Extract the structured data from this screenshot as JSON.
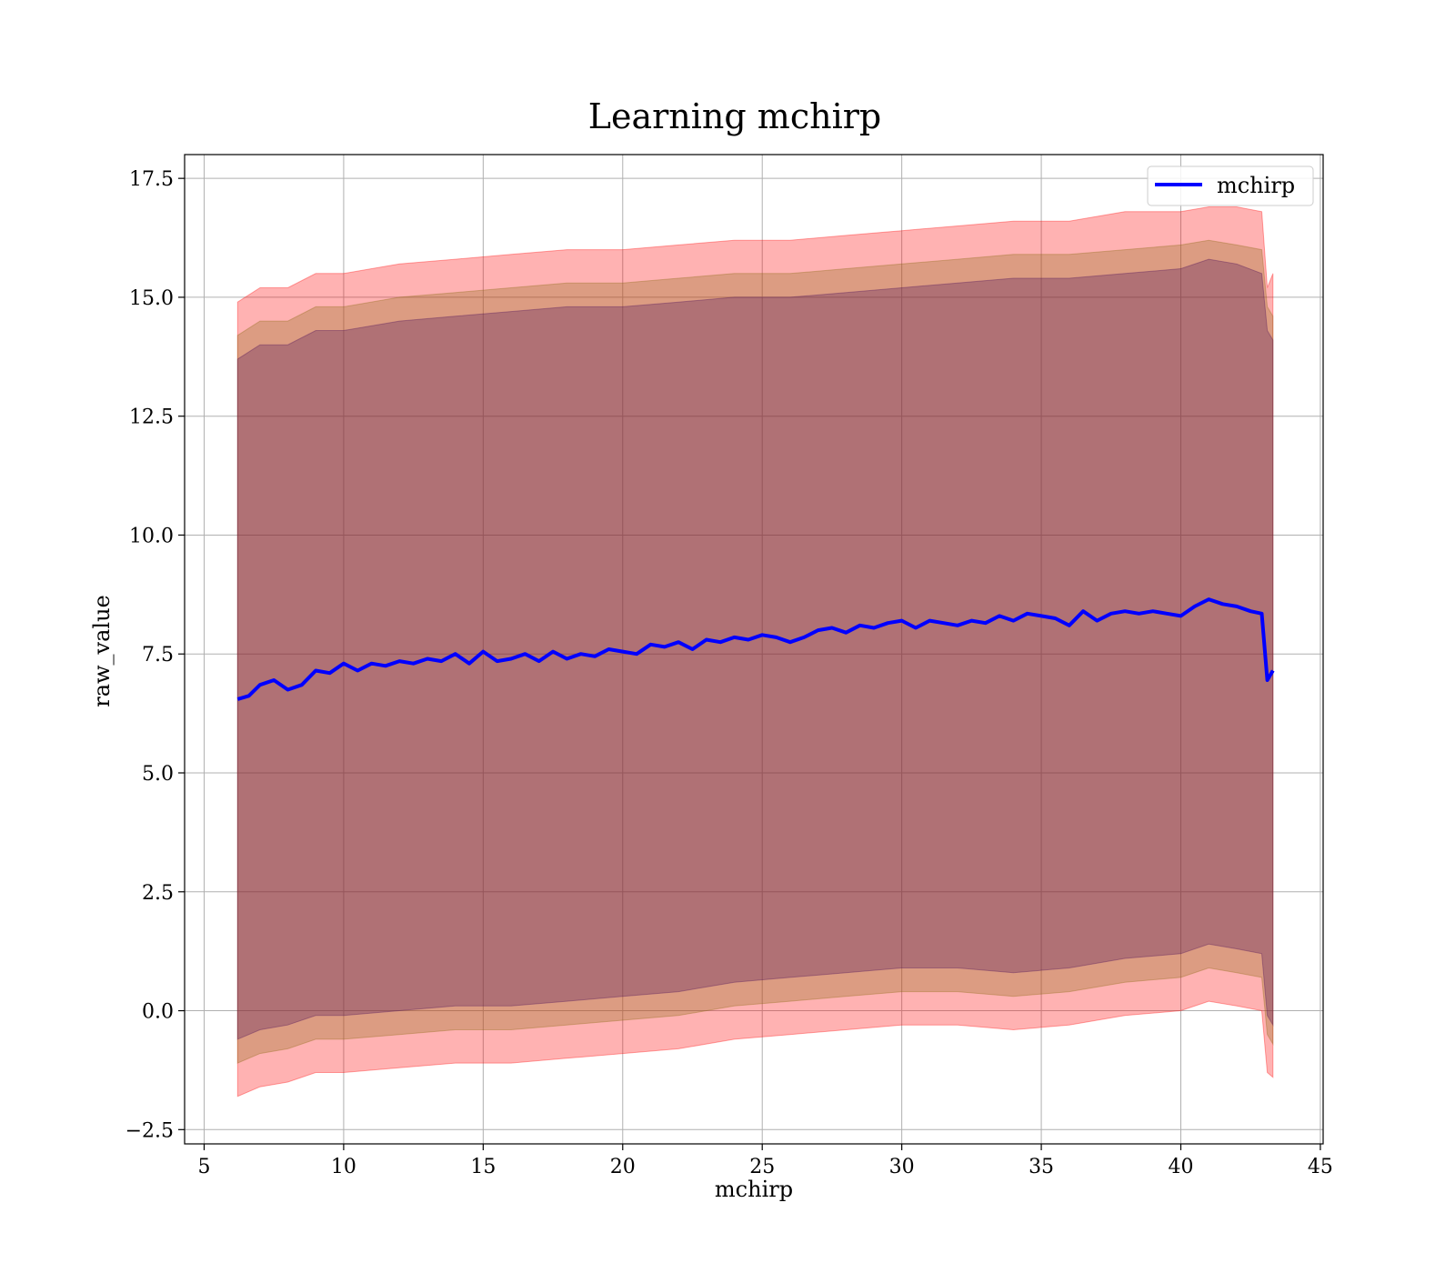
{
  "chart_data": {
    "type": "line",
    "title": "Learning mchirp",
    "xlabel": "mchirp",
    "ylabel": "raw_value",
    "xlim": [
      4.3,
      45.1
    ],
    "ylim": [
      -2.8,
      18.0
    ],
    "xticks": [
      5,
      10,
      15,
      20,
      25,
      30,
      35,
      40,
      45
    ],
    "xtick_labels": [
      "5",
      "10",
      "15",
      "20",
      "25",
      "30",
      "35",
      "40",
      "45"
    ],
    "yticks": [
      -2.5,
      0.0,
      2.5,
      5.0,
      7.5,
      10.0,
      12.5,
      15.0,
      17.5
    ],
    "ytick_labels": [
      "−2.5",
      "0.0",
      "2.5",
      "5.0",
      "7.5",
      "10.0",
      "12.5",
      "15.0",
      "17.5"
    ],
    "grid": true,
    "legend": {
      "location": "upper right",
      "entries": [
        "mchirp"
      ]
    },
    "series": [
      {
        "name": "mchirp",
        "color": "#0000ff",
        "x": [
          6.2,
          6.6,
          7.0,
          7.5,
          8.0,
          8.5,
          9.0,
          9.5,
          10.0,
          10.5,
          11.0,
          11.5,
          12.0,
          12.5,
          13.0,
          13.5,
          14.0,
          14.5,
          15.0,
          15.5,
          16.0,
          16.5,
          17.0,
          17.5,
          18.0,
          18.5,
          19.0,
          19.5,
          20.0,
          20.5,
          21.0,
          21.5,
          22.0,
          22.5,
          23.0,
          23.5,
          24.0,
          24.5,
          25.0,
          25.5,
          26.0,
          26.5,
          27.0,
          27.5,
          28.0,
          28.5,
          29.0,
          29.5,
          30.0,
          30.5,
          31.0,
          31.5,
          32.0,
          32.5,
          33.0,
          33.5,
          34.0,
          34.5,
          35.0,
          35.5,
          36.0,
          36.5,
          37.0,
          37.5,
          38.0,
          38.5,
          39.0,
          39.5,
          40.0,
          40.5,
          41.0,
          41.5,
          42.0,
          42.5,
          42.9,
          43.1,
          43.3
        ],
        "values": [
          6.55,
          6.62,
          6.85,
          6.95,
          6.75,
          6.85,
          7.15,
          7.1,
          7.3,
          7.15,
          7.3,
          7.25,
          7.35,
          7.3,
          7.4,
          7.35,
          7.5,
          7.3,
          7.55,
          7.35,
          7.4,
          7.5,
          7.35,
          7.55,
          7.4,
          7.5,
          7.45,
          7.6,
          7.55,
          7.5,
          7.7,
          7.65,
          7.75,
          7.6,
          7.8,
          7.75,
          7.85,
          7.8,
          7.9,
          7.85,
          7.75,
          7.85,
          8.0,
          8.05,
          7.95,
          8.1,
          8.05,
          8.15,
          8.2,
          8.05,
          8.2,
          8.15,
          8.1,
          8.2,
          8.15,
          8.3,
          8.2,
          8.35,
          8.3,
          8.25,
          8.1,
          8.4,
          8.2,
          8.35,
          8.4,
          8.35,
          8.4,
          8.35,
          8.3,
          8.5,
          8.65,
          8.55,
          8.5,
          8.4,
          8.35,
          6.95,
          7.15
        ]
      }
    ],
    "bands": [
      {
        "color": "#ff0000",
        "alpha": 0.3,
        "x": [
          6.2,
          7.0,
          8.0,
          9.0,
          10.0,
          12.0,
          14.0,
          16.0,
          18.0,
          20.0,
          22.0,
          24.0,
          26.0,
          28.0,
          30.0,
          32.0,
          34.0,
          36.0,
          38.0,
          40.0,
          41.0,
          42.0,
          42.9,
          43.1,
          43.3
        ],
        "upper": [
          14.9,
          15.2,
          15.2,
          15.5,
          15.5,
          15.7,
          15.8,
          15.9,
          16.0,
          16.0,
          16.1,
          16.2,
          16.2,
          16.3,
          16.4,
          16.5,
          16.6,
          16.6,
          16.8,
          16.8,
          16.9,
          16.9,
          16.8,
          15.2,
          15.5
        ],
        "lower": [
          -1.8,
          -1.6,
          -1.5,
          -1.3,
          -1.3,
          -1.2,
          -1.1,
          -1.1,
          -1.0,
          -0.9,
          -0.8,
          -0.6,
          -0.5,
          -0.4,
          -0.3,
          -0.3,
          -0.4,
          -0.3,
          -0.1,
          0.0,
          0.2,
          0.1,
          0.0,
          -1.3,
          -1.4
        ]
      },
      {
        "color": "#8b6914",
        "alpha": 0.3,
        "x": [
          6.2,
          7.0,
          8.0,
          9.0,
          10.0,
          12.0,
          14.0,
          16.0,
          18.0,
          20.0,
          22.0,
          24.0,
          26.0,
          28.0,
          30.0,
          32.0,
          34.0,
          36.0,
          38.0,
          40.0,
          41.0,
          42.0,
          42.9,
          43.1,
          43.3
        ],
        "upper": [
          14.2,
          14.5,
          14.5,
          14.8,
          14.8,
          15.0,
          15.1,
          15.2,
          15.3,
          15.3,
          15.4,
          15.5,
          15.5,
          15.6,
          15.7,
          15.8,
          15.9,
          15.9,
          16.0,
          16.1,
          16.2,
          16.1,
          16.0,
          14.8,
          14.6
        ],
        "lower": [
          -1.1,
          -0.9,
          -0.8,
          -0.6,
          -0.6,
          -0.5,
          -0.4,
          -0.4,
          -0.3,
          -0.2,
          -0.1,
          0.1,
          0.2,
          0.3,
          0.4,
          0.4,
          0.3,
          0.4,
          0.6,
          0.7,
          0.9,
          0.8,
          0.7,
          -0.5,
          -0.7
        ]
      },
      {
        "color": "#4b0d5a",
        "alpha": 0.3,
        "x": [
          6.2,
          7.0,
          8.0,
          9.0,
          10.0,
          12.0,
          14.0,
          16.0,
          18.0,
          20.0,
          22.0,
          24.0,
          26.0,
          28.0,
          30.0,
          32.0,
          34.0,
          36.0,
          38.0,
          40.0,
          41.0,
          42.0,
          42.9,
          43.1,
          43.3
        ],
        "upper": [
          13.7,
          14.0,
          14.0,
          14.3,
          14.3,
          14.5,
          14.6,
          14.7,
          14.8,
          14.8,
          14.9,
          15.0,
          15.0,
          15.1,
          15.2,
          15.3,
          15.4,
          15.4,
          15.5,
          15.6,
          15.8,
          15.7,
          15.5,
          14.3,
          14.1
        ],
        "lower": [
          -0.6,
          -0.4,
          -0.3,
          -0.1,
          -0.1,
          0.0,
          0.1,
          0.1,
          0.2,
          0.3,
          0.4,
          0.6,
          0.7,
          0.8,
          0.9,
          0.9,
          0.8,
          0.9,
          1.1,
          1.2,
          1.4,
          1.3,
          1.2,
          -0.1,
          -0.3
        ]
      }
    ]
  }
}
